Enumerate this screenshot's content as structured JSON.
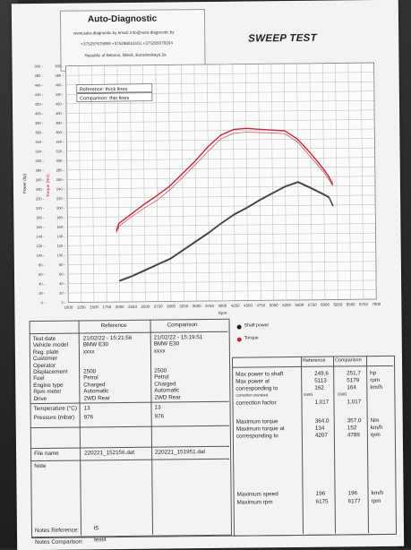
{
  "header": {
    "company": "Auto-Diagnostic",
    "contact_line": "www.auto-diagnostic.by     email: info@auto-diagnostic.by",
    "phones": "+375297675889  +375296016161  +375295079204",
    "address": "Republic of Belarus, Minsk, Borodinskaya 2a",
    "report_title": "SWEEP TEST"
  },
  "chart_data": {
    "type": "line",
    "xlabel": "Rpm",
    "ylabel_left": "Power (hp)",
    "ylabel_right": "Torque (Nm)",
    "xlim": [
      1000,
      7000
    ],
    "ylim": [
      0,
      500
    ],
    "x_ticks": [
      1000,
      1250,
      1500,
      1750,
      2000,
      2250,
      2500,
      2750,
      3000,
      3250,
      3500,
      3750,
      4000,
      4250,
      4500,
      4750,
      5000,
      5250,
      5500,
      5750,
      6000,
      6250,
      6500,
      6750,
      7000
    ],
    "y_ticks": [
      0,
      20,
      40,
      60,
      80,
      100,
      120,
      140,
      160,
      180,
      200,
      220,
      240,
      260,
      280,
      300,
      320,
      340,
      360,
      380,
      400,
      420,
      440,
      460,
      480,
      500
    ],
    "legend": [
      "Reference: thick lines",
      "Comparison: thin lines"
    ],
    "series_legend": [
      "Shaft power",
      "Torque"
    ],
    "series": [
      {
        "name": "Shaft power",
        "role": "reference",
        "color": "#333333",
        "x": [
          2000,
          2250,
          2500,
          2750,
          3000,
          3250,
          3500,
          3750,
          4000,
          4250,
          4500,
          4750,
          5000,
          5250,
          5500,
          5750,
          6000,
          6100,
          6175
        ],
        "values": [
          44,
          54,
          66,
          78,
          90,
          108,
          126,
          144,
          164,
          182,
          196,
          212,
          226,
          240,
          249,
          236,
          222,
          216,
          198
        ]
      },
      {
        "name": "Shaft power",
        "role": "comparison",
        "color": "#666666",
        "x": [
          2000,
          2250,
          2500,
          2750,
          3000,
          3250,
          3500,
          3750,
          4000,
          4250,
          4500,
          4750,
          5000,
          5250,
          5500,
          5750,
          6000,
          6100,
          6177
        ],
        "values": [
          46,
          56,
          68,
          80,
          92,
          110,
          128,
          146,
          166,
          184,
          198,
          214,
          228,
          242,
          251,
          238,
          224,
          218,
          200
        ]
      },
      {
        "name": "Torque",
        "role": "reference",
        "color": "#c0283a",
        "x": [
          1950,
          2000,
          2250,
          2500,
          2750,
          3000,
          3250,
          3500,
          3750,
          4000,
          4250,
          4500,
          4750,
          5000,
          5250,
          5500,
          5750,
          6000,
          6100,
          6175
        ],
        "values": [
          150,
          166,
          186,
          206,
          224,
          244,
          270,
          296,
          326,
          350,
          362,
          364,
          362,
          360,
          358,
          340,
          310,
          276,
          260,
          244
        ]
      },
      {
        "name": "Torque",
        "role": "comparison",
        "color": "#d04050",
        "x": [
          1950,
          2000,
          2250,
          2500,
          2750,
          3000,
          3250,
          3500,
          3750,
          4000,
          4250,
          4500,
          4750,
          5000,
          5250,
          5500,
          5750,
          6000,
          6100,
          6177
        ],
        "values": [
          146,
          160,
          180,
          198,
          214,
          236,
          262,
          288,
          316,
          342,
          354,
          356,
          355,
          354,
          352,
          334,
          302,
          270,
          254,
          240
        ]
      }
    ]
  },
  "info_table": {
    "headers": [
      "Reference",
      "Comparison"
    ],
    "rows": [
      {
        "label": "Test date",
        "ref": "21/02/22 - 15:21:56",
        "cmp": "21/02/22 - 15:19:51"
      },
      {
        "label": "Vehicle model",
        "ref": "BMW E30",
        "cmp": "BMW E30"
      },
      {
        "label": "Reg. plate",
        "ref": "xxxx",
        "cmp": "xxxx"
      },
      {
        "label": "Customer",
        "ref": "",
        "cmp": ""
      },
      {
        "label": "Operator",
        "ref": "",
        "cmp": ""
      },
      {
        "label": "Displacement",
        "ref": "2500",
        "cmp": "2500"
      },
      {
        "label": "Fuel",
        "ref": "Petrol",
        "cmp": "Petrol"
      },
      {
        "label": "Engine type",
        "ref": "Charged",
        "cmp": "Charged"
      },
      {
        "label": "Rpm meter",
        "ref": "Automatic",
        "cmp": "Automatic"
      },
      {
        "label": "Drive",
        "ref": "2WD Rear",
        "cmp": "2WD Rear"
      }
    ],
    "env_rows": [
      {
        "label": "Temperature (°C)",
        "ref": "13",
        "cmp": "13"
      },
      {
        "label": "Pressure (mbar)",
        "ref": "976",
        "cmp": "976"
      }
    ],
    "file_row": {
      "label": "File name",
      "ref": "220221_152156.dat",
      "cmp": "220221_151951.dat"
    },
    "note_label": "Note"
  },
  "results_table": {
    "headers": [
      "Reference",
      "Comparison"
    ],
    "legend_shaft": "Shaft power",
    "legend_torque": "Torque",
    "labels1": [
      "Max power to shaft",
      "Max power at",
      "corresponding to",
      "correction standard",
      "correction factor"
    ],
    "ref1": [
      "249,6",
      "5113",
      "162",
      "EWG",
      "1,017"
    ],
    "cmp1": [
      "251,7",
      "5179",
      "164",
      "EWG",
      "1,017"
    ],
    "units1": [
      "hp",
      "rpm",
      "km/h"
    ],
    "labels2": [
      "Maximum torque",
      "Maximum torque at",
      "corresponding to"
    ],
    "ref2": [
      "364,0",
      "134",
      "4207"
    ],
    "cmp2": [
      "357,0",
      "152",
      "4789"
    ],
    "units2": [
      "Nm",
      "km/h",
      "rpm"
    ],
    "labels3": [
      "Maximum speed",
      "Maximum rpm"
    ],
    "ref3": [
      "196",
      "6175"
    ],
    "cmp3": [
      "196",
      "6177"
    ],
    "units3": [
      "km/h",
      "rpm"
    ]
  },
  "notes": {
    "ref_label": "Notes Reference:",
    "ref_value": "t5",
    "cmp_label": "Notes Comparison:",
    "cmp_value": "test4"
  }
}
